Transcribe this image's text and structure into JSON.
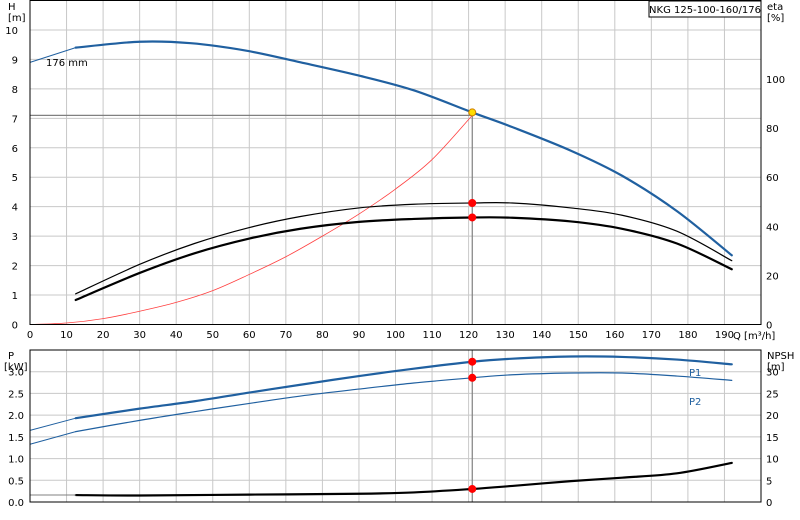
{
  "chart_data": [
    {
      "type": "line",
      "panel": "head-efficiency",
      "title": "NKG 125-100-160/176",
      "annotation": "176 mm",
      "xlabel": "Q [m³/h]",
      "ylabel": "H",
      "ylabel_unit": "[m]",
      "y2label": "eta",
      "y2label_unit": "[%]",
      "xlim": [
        0,
        200
      ],
      "ylim": [
        0,
        11
      ],
      "y2lim": [
        0,
        132
      ],
      "grid": true,
      "x_ticks": [
        "0",
        "10",
        "20",
        "30",
        "40",
        "50",
        "60",
        "70",
        "80",
        "90",
        "100",
        "110",
        "120",
        "130",
        "140",
        "150",
        "160",
        "170",
        "180",
        "190"
      ],
      "y_ticks": [
        "0",
        "1",
        "2",
        "3",
        "4",
        "5",
        "6",
        "7",
        "8",
        "9",
        "10"
      ],
      "y2_ticks": [
        "0",
        "20",
        "40",
        "60",
        "80",
        "100"
      ],
      "duty_point": {
        "q": 121,
        "h": 7.1
      },
      "series": [
        {
          "axis": "left",
          "color": "#2060a0",
          "width": 2.2,
          "points": [
            [
              12.5,
              9.4
            ],
            [
              30,
              9.6
            ],
            [
              44,
              9.55
            ],
            [
              59,
              9.3
            ],
            [
              74,
              8.9
            ],
            [
              90,
              8.45
            ],
            [
              105,
              7.95
            ],
            [
              121,
              7.2
            ],
            [
              132,
              6.7
            ],
            [
              148,
              5.9
            ],
            [
              162,
              5.05
            ],
            [
              177,
              3.85
            ],
            [
              192,
              2.35
            ]
          ]
        },
        {
          "axis": "left",
          "color": "#2060a0",
          "width": 1,
          "points": [
            [
              0,
              8.9
            ],
            [
              12.5,
              9.4
            ]
          ]
        },
        {
          "axis": "left",
          "color": "#ff4040",
          "width": 0.8,
          "points": [
            [
              0,
              0
            ],
            [
              10,
              0.05
            ],
            [
              20,
              0.2
            ],
            [
              30,
              0.45
            ],
            [
              40,
              0.75
            ],
            [
              50,
              1.15
            ],
            [
              60,
              1.7
            ],
            [
              70,
              2.3
            ],
            [
              80,
              3.0
            ],
            [
              90,
              3.75
            ],
            [
              100,
              4.6
            ],
            [
              110,
              5.6
            ],
            [
              121,
              7.1
            ]
          ]
        },
        {
          "axis": "right",
          "color": "#000000",
          "width": 1.2,
          "points": [
            [
              12.5,
              12.5
            ],
            [
              30,
              24.5
            ],
            [
              45,
              33
            ],
            [
              60,
              39.5
            ],
            [
              74,
              44
            ],
            [
              90,
              47.5
            ],
            [
              105,
              49
            ],
            [
              121,
              49.5
            ],
            [
              132,
              49.5
            ],
            [
              148,
              47.5
            ],
            [
              162,
              44.5
            ],
            [
              177,
              38
            ],
            [
              192,
              26
            ]
          ]
        },
        {
          "axis": "right",
          "color": "#000000",
          "width": 2.2,
          "points": [
            [
              12.5,
              10
            ],
            [
              30,
              21
            ],
            [
              45,
              29
            ],
            [
              60,
              35
            ],
            [
              74,
              39
            ],
            [
              90,
              41.8
            ],
            [
              105,
              43
            ],
            [
              121,
              43.6
            ],
            [
              132,
              43.5
            ],
            [
              148,
              42
            ],
            [
              162,
              39
            ],
            [
              177,
              33
            ],
            [
              192,
              22.5
            ]
          ]
        }
      ],
      "markers": [
        {
          "axis": "left",
          "q": 121,
          "v": 7.2,
          "color": "#ffdd00"
        },
        {
          "axis": "right",
          "q": 121,
          "v": 49.5,
          "color": "#ff0000"
        },
        {
          "axis": "right",
          "q": 121,
          "v": 43.6,
          "color": "#ff0000"
        }
      ]
    },
    {
      "type": "line",
      "panel": "power-npsh",
      "ylabel": "P",
      "ylabel_unit": "[kW]",
      "y2label": "NPSH",
      "y2label_unit": "[m]",
      "xlim": [
        0,
        200
      ],
      "ylim": [
        0,
        3.5
      ],
      "y2lim": [
        0,
        35
      ],
      "grid": true,
      "y_ticks": [
        "0.0",
        "0.5",
        "1.0",
        "1.5",
        "2.0",
        "2.5",
        "3.0"
      ],
      "y_tick_values": [
        0,
        0.5,
        1.0,
        1.5,
        2.0,
        2.5,
        3.0
      ],
      "y2_ticks": [
        "0",
        "5",
        "10",
        "15",
        "20",
        "25",
        "30"
      ],
      "y2_tick_values": [
        0,
        5,
        10,
        15,
        20,
        25,
        30
      ],
      "series": [
        {
          "name": "P1",
          "axis": "left",
          "color": "#2060a0",
          "width": 2.2,
          "points": [
            [
              12.5,
              1.93
            ],
            [
              30,
              2.15
            ],
            [
              45,
              2.32
            ],
            [
              60,
              2.52
            ],
            [
              74,
              2.7
            ],
            [
              90,
              2.9
            ],
            [
              105,
              3.07
            ],
            [
              121,
              3.23
            ],
            [
              132,
              3.3
            ],
            [
              148,
              3.35
            ],
            [
              162,
              3.34
            ],
            [
              177,
              3.28
            ],
            [
              192,
              3.17
            ]
          ]
        },
        {
          "name": "P2",
          "axis": "left",
          "color": "#2060a0",
          "width": 1.2,
          "points": [
            [
              12.5,
              1.62
            ],
            [
              30,
              1.88
            ],
            [
              45,
              2.08
            ],
            [
              60,
              2.27
            ],
            [
              74,
              2.44
            ],
            [
              90,
              2.6
            ],
            [
              105,
              2.74
            ],
            [
              121,
              2.86
            ],
            [
              132,
              2.93
            ],
            [
              148,
              2.97
            ],
            [
              162,
              2.97
            ],
            [
              177,
              2.9
            ],
            [
              192,
              2.8
            ]
          ]
        },
        {
          "axis": "left",
          "color": "#2060a0",
          "width": 1,
          "points": [
            [
              0,
              1.65
            ],
            [
              12.5,
              1.93
            ]
          ]
        },
        {
          "axis": "left",
          "color": "#2060a0",
          "width": 1,
          "points": [
            [
              0,
              1.33
            ],
            [
              12.5,
              1.62
            ]
          ]
        },
        {
          "axis": "right",
          "color": "#000000",
          "width": 2.2,
          "points": [
            [
              12.5,
              1.6
            ],
            [
              30,
              1.5
            ],
            [
              60,
              1.7
            ],
            [
              90,
              1.9
            ],
            [
              105,
              2.2
            ],
            [
              121,
              3.0
            ],
            [
              132,
              3.7
            ],
            [
              148,
              4.8
            ],
            [
              162,
              5.6
            ],
            [
              177,
              6.6
            ],
            [
              192,
              9.0
            ]
          ]
        },
        {
          "axis": "right",
          "color": "#808080",
          "width": 1,
          "points": [
            [
              0,
              1.6
            ],
            [
              12.5,
              1.6
            ]
          ]
        }
      ],
      "markers": [
        {
          "axis": "left",
          "q": 121,
          "v": 3.23,
          "color": "#ff0000"
        },
        {
          "axis": "left",
          "q": 121,
          "v": 2.86,
          "color": "#ff0000"
        },
        {
          "axis": "right",
          "q": 121,
          "v": 3.0,
          "color": "#ff0000"
        }
      ]
    }
  ]
}
